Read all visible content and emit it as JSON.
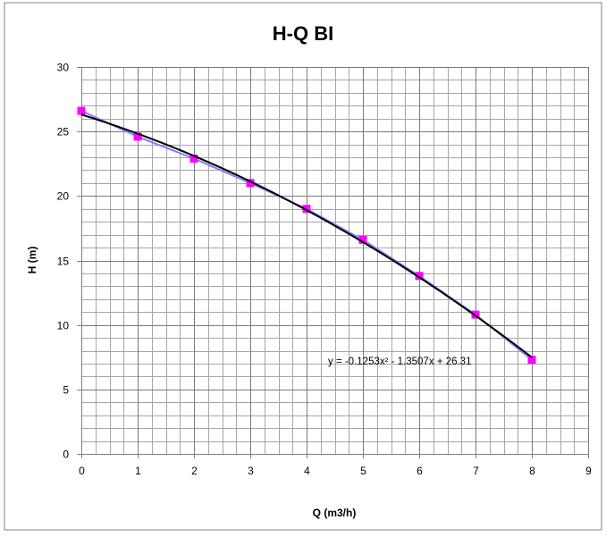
{
  "chart_data": {
    "type": "scatter",
    "title": "H-Q BI",
    "xlabel": "Q (m3/h)",
    "ylabel": "H (m)",
    "xlim": [
      0,
      9
    ],
    "ylim": [
      0,
      30
    ],
    "x_ticks": [
      0,
      1,
      2,
      3,
      4,
      5,
      6,
      7,
      8,
      9
    ],
    "y_ticks": [
      0,
      5,
      10,
      15,
      20,
      25,
      30
    ],
    "x_minor_step": 0.25,
    "y_minor_step": 1,
    "grid": true,
    "legend": "none",
    "series": [
      {
        "kind": "markers-with-line",
        "color": "#ff00ff",
        "line_color": "#8080ff",
        "x": [
          0,
          1,
          2,
          3,
          4,
          5,
          6,
          7,
          8
        ],
        "y": [
          26.6,
          24.6,
          22.9,
          21.0,
          19.0,
          16.6,
          13.8,
          10.8,
          7.3
        ]
      }
    ],
    "trendline": {
      "type": "polynomial",
      "order": 2,
      "color": "#000000",
      "coefficients": {
        "a": -0.1253,
        "b": -1.3507,
        "c": 26.31
      },
      "x_range": [
        0,
        8
      ],
      "equation_label": "y = -0.1253x² - 1.3507x + 26.31"
    }
  }
}
